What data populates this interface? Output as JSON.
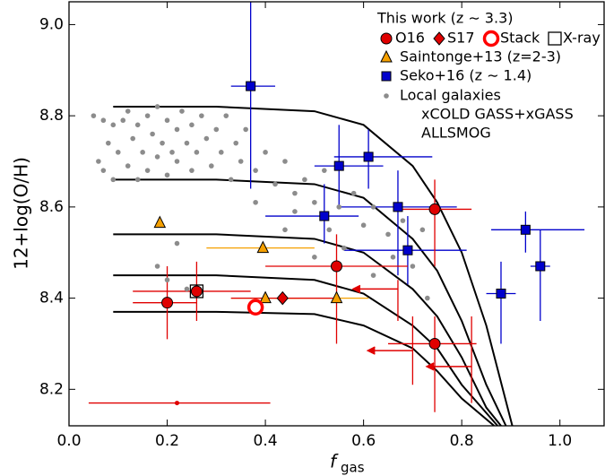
{
  "chart_data": {
    "type": "scatter",
    "xlabel": "f",
    "xlabel_sub": "gas",
    "ylabel": "12+log(O/H)",
    "xlim": [
      0,
      1.09
    ],
    "ylim": [
      8.12,
      9.05
    ],
    "xticks": [
      {
        "value": 0,
        "label": "0.0"
      },
      0.2,
      0.4,
      0.6,
      0.8,
      {
        "value": 1,
        "label": "1.0"
      }
    ],
    "yticks": [
      8.2,
      8.4,
      8.6,
      8.8,
      {
        "value": 9,
        "label": "9.0"
      }
    ],
    "legend_title": "This work (z ∼ 3.3)",
    "legend_notes": [
      "xCOLD GASS+xGASS",
      "ALLSMOG"
    ],
    "series": [
      {
        "name": "Local galaxies",
        "color": "#8c8c8c",
        "marker": "dot",
        "x": [
          0.05,
          0.06,
          0.07,
          0.07,
          0.08,
          0.09,
          0.09,
          0.1,
          0.11,
          0.12,
          0.12,
          0.13,
          0.14,
          0.14,
          0.15,
          0.16,
          0.16,
          0.17,
          0.18,
          0.18,
          0.19,
          0.2,
          0.2,
          0.21,
          0.22,
          0.22,
          0.23,
          0.24,
          0.25,
          0.25,
          0.26,
          0.27,
          0.28,
          0.29,
          0.3,
          0.31,
          0.32,
          0.33,
          0.34,
          0.35,
          0.36,
          0.38,
          0.4,
          0.42,
          0.44,
          0.46,
          0.48,
          0.5,
          0.52,
          0.55,
          0.58,
          0.6,
          0.62,
          0.65,
          0.68,
          0.72,
          0.18,
          0.2,
          0.22,
          0.24,
          0.44,
          0.5,
          0.56,
          0.62,
          0.66,
          0.7,
          0.73,
          0.38,
          0.46,
          0.53
        ],
        "values": [
          8.8,
          8.7,
          8.79,
          8.68,
          8.74,
          8.66,
          8.78,
          8.72,
          8.79,
          8.69,
          8.81,
          8.75,
          8.66,
          8.78,
          8.72,
          8.8,
          8.68,
          8.76,
          8.71,
          8.82,
          8.74,
          8.67,
          8.79,
          8.72,
          8.77,
          8.7,
          8.81,
          8.74,
          8.68,
          8.78,
          8.72,
          8.8,
          8.75,
          8.69,
          8.77,
          8.72,
          8.8,
          8.66,
          8.74,
          8.7,
          8.77,
          8.68,
          8.72,
          8.65,
          8.7,
          8.63,
          8.66,
          8.61,
          8.68,
          8.6,
          8.63,
          8.56,
          8.6,
          8.54,
          8.57,
          8.55,
          8.47,
          8.44,
          8.52,
          8.42,
          8.55,
          8.49,
          8.51,
          8.45,
          8.49,
          8.47,
          8.4,
          8.61,
          8.59,
          8.55
        ]
      },
      {
        "name": "Saintonge+13 (z=2-3)",
        "color": "#f5a000",
        "marker": "triangle",
        "x": [
          0.185,
          0.395,
          0.4,
          0.545
        ],
        "values": [
          8.565,
          8.51,
          8.4,
          8.4
        ],
        "xerr": [
          null,
          [
            0.28,
            0.5
          ],
          [
            0.33,
            0.47
          ],
          [
            0.42,
            0.61
          ]
        ]
      },
      {
        "name": "Seko+16 (z ∼ 1.4)",
        "color": "#0000cc",
        "marker": "square",
        "x": [
          0.37,
          0.55,
          0.61,
          0.52,
          0.67,
          0.69,
          0.88,
          0.93,
          0.96
        ],
        "values": [
          8.865,
          8.69,
          8.71,
          8.58,
          8.6,
          8.505,
          8.41,
          8.55,
          8.47
        ],
        "xerr": [
          [
            0.33,
            0.42
          ],
          [
            0.5,
            0.64
          ],
          [
            0.54,
            0.74
          ],
          [
            0.4,
            0.59
          ],
          [
            0.55,
            0.79
          ],
          [
            0.56,
            0.81
          ],
          [
            0.85,
            0.91
          ],
          [
            0.86,
            1.05
          ],
          [
            0.94,
            0.98
          ]
        ],
        "yerr": [
          [
            8.64,
            9.05
          ],
          [
            8.6,
            8.78
          ],
          [
            8.64,
            8.77
          ],
          [
            8.52,
            8.65
          ],
          [
            8.45,
            8.68
          ],
          [
            8.43,
            8.58
          ],
          [
            8.3,
            8.48
          ],
          [
            8.5,
            8.59
          ],
          [
            8.35,
            8.55
          ]
        ]
      },
      {
        "name": "O16",
        "color": "#e00000",
        "marker": "circle",
        "x": [
          0.2,
          0.26,
          0.545,
          0.745,
          0.745,
          0.22,
          0.67,
          0.7,
          0.82
        ],
        "values": [
          8.39,
          8.415,
          8.47,
          8.595,
          8.3,
          8.17,
          8.42,
          8.285,
          8.25
        ],
        "xerr": [
          [
            0.13,
            0.26
          ],
          [
            0.13,
            0.37
          ],
          [
            0.4,
            0.69
          ],
          [
            0.67,
            0.82
          ],
          [
            0.65,
            0.83
          ],
          [
            0.04,
            0.41
          ],
          null,
          null,
          null
        ],
        "yerr": [
          [
            8.31,
            8.47
          ],
          [
            8.35,
            8.48
          ],
          [
            8.3,
            8.54
          ],
          [
            8.47,
            8.66
          ],
          [
            8.15,
            8.36
          ],
          null,
          [
            8.35,
            8.44
          ],
          [
            8.21,
            8.36
          ],
          [
            8.17,
            8.36
          ]
        ],
        "upper_limit": [
          false,
          false,
          false,
          false,
          false,
          false,
          true,
          true,
          true
        ]
      },
      {
        "name": "S17",
        "color": "#e00000",
        "marker": "diamond",
        "x": [
          0.435
        ],
        "values": [
          8.4
        ],
        "xerr": [
          [
            0.33,
            0.55
          ]
        ]
      },
      {
        "name": "Stack",
        "color": "#ff0000",
        "marker": "open-circle",
        "x": [
          0.38
        ],
        "values": [
          8.38
        ]
      },
      {
        "name": "X-ray",
        "color": "#000000",
        "marker": "open-square",
        "x": [
          0.26
        ],
        "values": [
          8.415
        ]
      }
    ],
    "models": {
      "color": "#000000",
      "curves": [
        {
          "x": [
            0.09,
            0.3,
            0.5,
            0.6,
            0.7,
            0.75,
            0.8,
            0.85,
            0.903
          ],
          "values": [
            8.82,
            8.82,
            8.81,
            8.78,
            8.69,
            8.61,
            8.5,
            8.34,
            8.12
          ]
        },
        {
          "x": [
            0.09,
            0.3,
            0.5,
            0.6,
            0.7,
            0.75,
            0.8,
            0.85,
            0.89
          ],
          "values": [
            8.66,
            8.66,
            8.65,
            8.62,
            8.53,
            8.46,
            8.35,
            8.21,
            8.12
          ]
        },
        {
          "x": [
            0.09,
            0.3,
            0.5,
            0.6,
            0.7,
            0.75,
            0.8,
            0.85,
            0.88
          ],
          "values": [
            8.54,
            8.54,
            8.53,
            8.5,
            8.42,
            8.36,
            8.27,
            8.16,
            8.12
          ]
        },
        {
          "x": [
            0.09,
            0.3,
            0.5,
            0.6,
            0.7,
            0.75,
            0.8,
            0.873
          ],
          "values": [
            8.45,
            8.45,
            8.44,
            8.41,
            8.34,
            8.29,
            8.21,
            8.12
          ]
        },
        {
          "x": [
            0.09,
            0.3,
            0.5,
            0.6,
            0.7,
            0.75,
            0.8,
            0.866
          ],
          "values": [
            8.37,
            8.37,
            8.365,
            8.34,
            8.29,
            8.24,
            8.18,
            8.12
          ]
        }
      ]
    }
  }
}
